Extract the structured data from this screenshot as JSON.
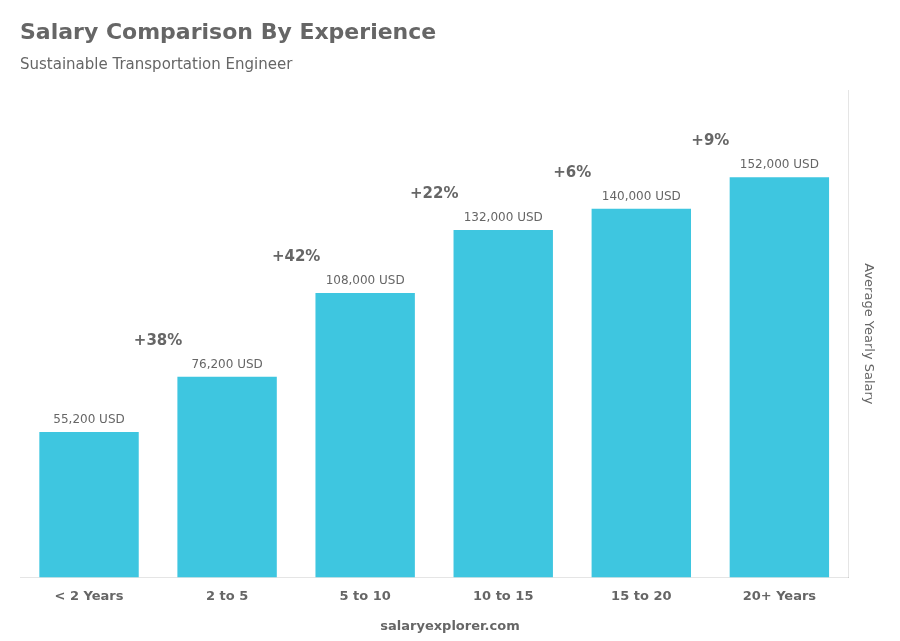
{
  "chart_data": {
    "type": "bar",
    "title": "Salary Comparison By Experience",
    "subtitle": "Sustainable Transportation Engineer",
    "ylabel": "Average Yearly Salary",
    "categories": [
      "< 2 Years",
      "2 to 5",
      "5 to 10",
      "10 to 15",
      "15 to 20",
      "20+ Years"
    ],
    "values": [
      55200,
      76200,
      108000,
      132000,
      140000,
      152000
    ],
    "value_labels": [
      "55,200 USD",
      "76,200 USD",
      "108,000 USD",
      "132,000 USD",
      "140,000 USD",
      "152,000 USD"
    ],
    "data_labels": true,
    "annotations": [
      "+38%",
      "+42%",
      "+22%",
      "+6%",
      "+9%"
    ],
    "footer": "salaryexplorer.com",
    "color": "#3ec6e0",
    "ylim": [
      0,
      185000
    ],
    "grid": false,
    "tick_labels": "x"
  }
}
